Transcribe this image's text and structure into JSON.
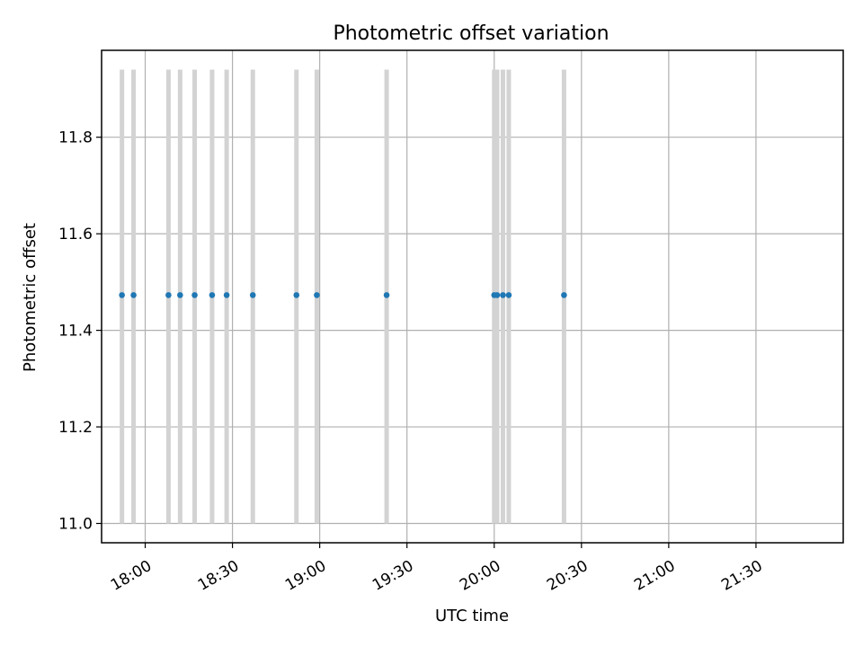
{
  "chart_data": {
    "type": "scatter",
    "title": "Photometric offset variation",
    "xlabel": "UTC time",
    "ylabel": "Photometric offset",
    "x_ticks": [
      "18:00",
      "18:30",
      "19:00",
      "19:30",
      "20:00",
      "20:30",
      "21:00",
      "21:30"
    ],
    "y_ticks": [
      "11.0",
      "11.2",
      "11.4",
      "11.6",
      "11.8"
    ],
    "xlim": [
      "17:45",
      "22:00"
    ],
    "ylim": [
      10.96,
      11.98
    ],
    "grid": true,
    "band_range": [
      11.0,
      11.94
    ],
    "series": [
      {
        "points": [
          {
            "time": "17:52",
            "offset": 11.473
          },
          {
            "time": "17:56",
            "offset": 11.473
          },
          {
            "time": "18:08",
            "offset": 11.473
          },
          {
            "time": "18:12",
            "offset": 11.473
          },
          {
            "time": "18:17",
            "offset": 11.473
          },
          {
            "time": "18:23",
            "offset": 11.473
          },
          {
            "time": "18:28",
            "offset": 11.473
          },
          {
            "time": "18:37",
            "offset": 11.473
          },
          {
            "time": "18:52",
            "offset": 11.473
          },
          {
            "time": "18:59",
            "offset": 11.473
          },
          {
            "time": "19:23",
            "offset": 11.473
          },
          {
            "time": "20:00",
            "offset": 11.473
          },
          {
            "time": "20:01",
            "offset": 11.473
          },
          {
            "time": "20:03",
            "offset": 11.473
          },
          {
            "time": "20:05",
            "offset": 11.473
          },
          {
            "time": "20:24",
            "offset": 11.473
          }
        ]
      }
    ],
    "colors": {
      "points": "#1f77b4",
      "bands": "#d3d3d3",
      "grid": "#b0b0b0"
    }
  }
}
